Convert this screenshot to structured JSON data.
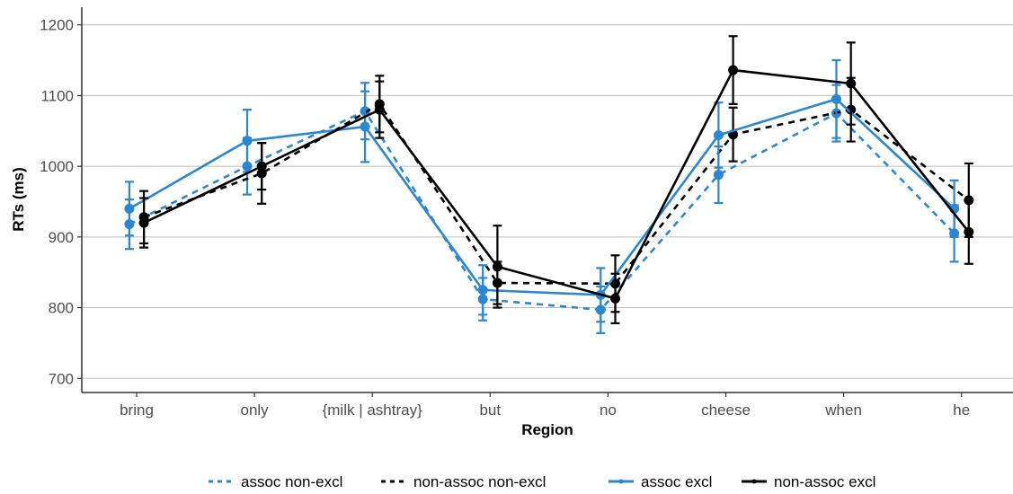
{
  "chart_data": {
    "type": "line",
    "title": "",
    "xlabel": "Region",
    "ylabel": "RTs (ms)",
    "ylim": [
      680,
      1225
    ],
    "yticks": [
      700,
      800,
      900,
      1000,
      1100,
      1200
    ],
    "grid": "horizontal",
    "legend_position": "bottom",
    "categories": [
      "bring",
      "only",
      "{milk | ashtray}",
      "but",
      "no",
      "cheese",
      "when",
      "he"
    ],
    "series": [
      {
        "name": "assoc non-excl",
        "color": "#2b87d1",
        "dash": "dotted",
        "values": [
          918,
          1000,
          1078,
          812,
          797,
          988,
          1075,
          905
        ],
        "err": [
          35,
          40,
          40,
          30,
          33,
          40,
          40,
          40
        ]
      },
      {
        "name": "non-assoc non-excl",
        "color": "#000000",
        "dash": "dotted",
        "values": [
          928,
          990,
          1088,
          835,
          834,
          1045,
          1080,
          952
        ],
        "err": [
          37,
          43,
          40,
          30,
          40,
          38,
          45,
          52
        ]
      },
      {
        "name": "assoc excl",
        "color": "#2b87d1",
        "dash": "solid",
        "values": [
          940,
          1036,
          1056,
          825,
          818,
          1044,
          1095,
          940
        ],
        "err": [
          38,
          44,
          50,
          35,
          38,
          46,
          55,
          40
        ]
      },
      {
        "name": "non-assoc excl",
        "color": "#000000",
        "dash": "solid",
        "values": [
          920,
          1000,
          1080,
          858,
          813,
          1136,
          1117,
          907
        ],
        "err": [
          35,
          33,
          40,
          58,
          35,
          48,
          58,
          45
        ]
      }
    ]
  }
}
